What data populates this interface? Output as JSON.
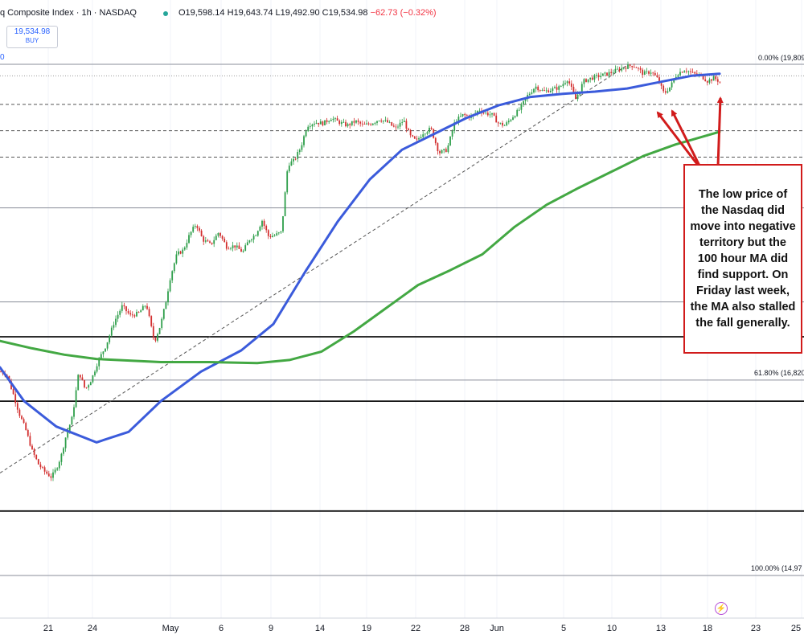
{
  "header": {
    "title_text": "q Composite Index · 1h · NASDAQ",
    "open": "O19,598.14",
    "high": "H19,643.74",
    "low": "L19,492.90",
    "close": "C19,534.98",
    "change": "−62.73 (−0.32%)"
  },
  "buy_box": {
    "price": "19,534.98",
    "label": "BUY"
  },
  "price_axis_partial": "0",
  "fib_labels": {
    "level_0": "0.00% (19,809",
    "level_618": "61.80% (16,820",
    "level_100": "100.00% (14,97"
  },
  "annotation": {
    "text": "The low price of the Nasdaq did move into negative territory but the 100 hour MA did find support. On Friday last week, the MA also stalled the fall generally."
  },
  "colors": {
    "ma100": "#3b5bdb",
    "ma200": "#43a843",
    "bull": "#2e9e4a",
    "bear": "#d32f2f",
    "annotation_border": "#d11b1b",
    "arrow": "#d11b1b"
  },
  "icons": {
    "bottom_logo": "lightning-icon"
  },
  "chart_data": {
    "type": "candlestick",
    "title": "",
    "x_tick_labels": [
      "21",
      "24",
      "May",
      "6",
      "9",
      "14",
      "19",
      "22",
      "28",
      "Jun",
      "5",
      "10",
      "13",
      "18",
      "23",
      "25"
    ],
    "series": [
      {
        "name": "",
        "kind": "moving_average_100h",
        "color": "#3b5bdb",
        "values": [
          [
            0,
            16940
          ],
          [
            30,
            16620
          ],
          [
            70,
            16380
          ],
          [
            120,
            16230
          ],
          [
            160,
            16330
          ],
          [
            200,
            16620
          ],
          [
            250,
            16900
          ],
          [
            300,
            17100
          ],
          [
            340,
            17350
          ],
          [
            380,
            17850
          ],
          [
            420,
            18320
          ],
          [
            460,
            18720
          ],
          [
            500,
            19000
          ],
          [
            540,
            19150
          ],
          [
            580,
            19300
          ],
          [
            620,
            19420
          ],
          [
            660,
            19500
          ],
          [
            700,
            19530
          ],
          [
            740,
            19550
          ],
          [
            780,
            19580
          ],
          [
            820,
            19640
          ],
          [
            860,
            19700
          ],
          [
            895,
            19720
          ]
        ]
      },
      {
        "name": "",
        "kind": "moving_average_200h",
        "color": "#43a843",
        "values": [
          [
            0,
            17190
          ],
          [
            40,
            17120
          ],
          [
            80,
            17060
          ],
          [
            120,
            17020
          ],
          [
            200,
            16990
          ],
          [
            260,
            16990
          ],
          [
            320,
            16980
          ],
          [
            360,
            17010
          ],
          [
            400,
            17090
          ],
          [
            440,
            17280
          ],
          [
            480,
            17500
          ],
          [
            520,
            17720
          ],
          [
            560,
            17860
          ],
          [
            600,
            18010
          ],
          [
            640,
            18270
          ],
          [
            680,
            18480
          ],
          [
            720,
            18640
          ],
          [
            760,
            18790
          ],
          [
            800,
            18940
          ],
          [
            840,
            19050
          ],
          [
            895,
            19170
          ]
        ]
      }
    ],
    "horizontal_levels": [
      {
        "label": "0.00% (19,809",
        "value": 19809,
        "style": "solid-gray"
      },
      {
        "label": "",
        "value": 19700,
        "style": "dotted"
      },
      {
        "label": "",
        "value": 19430,
        "style": "dashed"
      },
      {
        "label": "",
        "value": 19180,
        "style": "dashed"
      },
      {
        "label": "",
        "value": 18930,
        "style": "dashed"
      },
      {
        "label": "",
        "value": 18450,
        "style": "solid-gray"
      },
      {
        "label": "",
        "value": 17560,
        "style": "solid-gray"
      },
      {
        "label": "",
        "value": 17230,
        "style": "solid-black"
      },
      {
        "label": "61.80% (16,820",
        "value": 16820,
        "style": "solid-gray"
      },
      {
        "label": "",
        "value": 16620,
        "style": "solid-black"
      },
      {
        "label": "",
        "value": 15580,
        "style": "solid-black"
      },
      {
        "label": "100.00% (14,97",
        "value": 14970,
        "style": "solid-gray"
      }
    ],
    "trendline": {
      "style": "dashed",
      "from": [
        0,
        15940
      ],
      "to": [
        780,
        19800
      ]
    },
    "price_path": [
      [
        0,
        16900
      ],
      [
        8,
        16880
      ],
      [
        16,
        16700
      ],
      [
        24,
        16500
      ],
      [
        32,
        16350
      ],
      [
        40,
        16150
      ],
      [
        48,
        16020
      ],
      [
        56,
        15950
      ],
      [
        64,
        15900
      ],
      [
        70,
        15980
      ],
      [
        76,
        16100
      ],
      [
        82,
        16290
      ],
      [
        90,
        16470
      ],
      [
        98,
        16900
      ],
      [
        106,
        16730
      ],
      [
        114,
        16830
      ],
      [
        122,
        17000
      ],
      [
        132,
        17150
      ],
      [
        142,
        17370
      ],
      [
        152,
        17520
      ],
      [
        162,
        17430
      ],
      [
        172,
        17450
      ],
      [
        182,
        17540
      ],
      [
        192,
        17180
      ],
      [
        200,
        17350
      ],
      [
        206,
        17550
      ],
      [
        212,
        17800
      ],
      [
        220,
        18010
      ],
      [
        228,
        18050
      ],
      [
        236,
        18200
      ],
      [
        244,
        18300
      ],
      [
        252,
        18150
      ],
      [
        262,
        18100
      ],
      [
        272,
        18220
      ],
      [
        282,
        18080
      ],
      [
        292,
        18090
      ],
      [
        302,
        18030
      ],
      [
        310,
        18150
      ],
      [
        318,
        18200
      ],
      [
        326,
        18330
      ],
      [
        334,
        18180
      ],
      [
        342,
        18190
      ],
      [
        350,
        18220
      ],
      [
        358,
        18860
      ],
      [
        366,
        18900
      ],
      [
        374,
        19020
      ],
      [
        382,
        19230
      ],
      [
        392,
        19260
      ],
      [
        402,
        19250
      ],
      [
        412,
        19300
      ],
      [
        422,
        19260
      ],
      [
        432,
        19230
      ],
      [
        442,
        19270
      ],
      [
        452,
        19230
      ],
      [
        462,
        19250
      ],
      [
        472,
        19290
      ],
      [
        482,
        19260
      ],
      [
        492,
        19200
      ],
      [
        502,
        19280
      ],
      [
        510,
        19130
      ],
      [
        518,
        19080
      ],
      [
        526,
        19160
      ],
      [
        536,
        19200
      ],
      [
        546,
        18970
      ],
      [
        556,
        19000
      ],
      [
        566,
        19270
      ],
      [
        576,
        19330
      ],
      [
        586,
        19310
      ],
      [
        596,
        19380
      ],
      [
        602,
        19350
      ],
      [
        612,
        19330
      ],
      [
        620,
        19250
      ],
      [
        628,
        19230
      ],
      [
        636,
        19300
      ],
      [
        646,
        19380
      ],
      [
        656,
        19510
      ],
      [
        666,
        19600
      ],
      [
        676,
        19550
      ],
      [
        686,
        19570
      ],
      [
        696,
        19590
      ],
      [
        706,
        19670
      ],
      [
        716,
        19480
      ],
      [
        726,
        19650
      ],
      [
        736,
        19680
      ],
      [
        746,
        19700
      ],
      [
        756,
        19720
      ],
      [
        766,
        19750
      ],
      [
        776,
        19780
      ],
      [
        786,
        19800
      ],
      [
        792,
        19780
      ],
      [
        800,
        19720
      ],
      [
        810,
        19740
      ],
      [
        818,
        19670
      ],
      [
        826,
        19530
      ],
      [
        834,
        19600
      ],
      [
        842,
        19720
      ],
      [
        852,
        19760
      ],
      [
        862,
        19720
      ],
      [
        872,
        19700
      ],
      [
        880,
        19650
      ],
      [
        888,
        19680
      ],
      [
        896,
        19640
      ]
    ]
  }
}
